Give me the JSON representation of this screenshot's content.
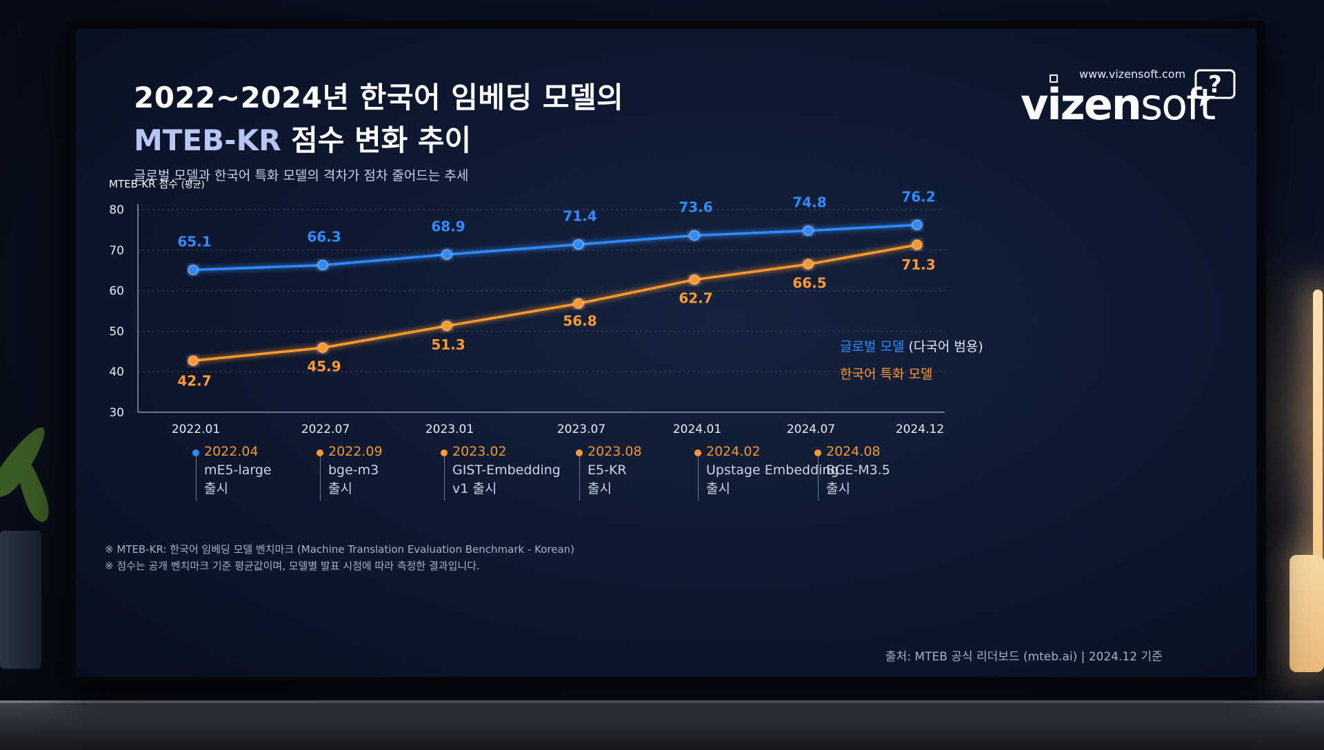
{
  "title_line1": "2022~2024년 한국어 임베딩 모델의",
  "title_line2_accent": "MTEB-KR",
  "title_line2_rest": " 점수 변화 추이",
  "subtitle": "글로벌 모델과 한국어 특화 모델의 격차가 점차 줄어드는 추세",
  "logo": {
    "url": "www.vizensoft.com",
    "word_bold": "vizen",
    "word_light": "soft",
    "icon": "question-bubble-icon"
  },
  "colors": {
    "global": "#2f8cff",
    "korean": "#ff9a2e",
    "axis": "#8a96ad",
    "tick": "#e9eef8"
  },
  "chart_data": {
    "type": "line",
    "ylabel": "MTEB-KR 점수",
    "ylabel_suffix": "(평균)",
    "ylim": [
      30,
      80
    ],
    "yticks": [
      80,
      70,
      60,
      50,
      40,
      30
    ],
    "categories": [
      "2022.01",
      "2022.07",
      "2023.01",
      "2023.07",
      "2024.01",
      "2024.07",
      "2024.12"
    ],
    "grid": true,
    "legend_position": "right",
    "series": [
      {
        "name": "글로벌 모델",
        "name_suffix": "(다국어 범용)",
        "values": [
          65.1,
          66.3,
          68.9,
          71.4,
          73.6,
          74.8,
          76.2
        ]
      },
      {
        "name": "한국어 특화 모델",
        "name_suffix": "",
        "values": [
          42.7,
          45.9,
          51.3,
          56.8,
          62.7,
          66.5,
          71.3
        ]
      }
    ]
  },
  "annotations": [
    {
      "date": "2022.04",
      "line1": "mE5-large",
      "line2": "출시",
      "dot": "blue"
    },
    {
      "date": "2022.09",
      "line1": "bge-m3",
      "line2": "출시",
      "dot": "orange"
    },
    {
      "date": "2023.02",
      "line1": "GIST-Embedding",
      "line2": "v1 출시",
      "dot": "orange"
    },
    {
      "date": "2023.08",
      "line1": "E5-KR",
      "line2": "출시",
      "dot": "orange"
    },
    {
      "date": "2024.02",
      "line1": "Upstage Embedding",
      "line2": "출시",
      "dot": "orange"
    },
    {
      "date": "2024.08",
      "line1": "BGE-M3.5",
      "line2": "출시",
      "dot": "orange"
    }
  ],
  "notes": [
    "※ MTEB-KR: 한국어 임베딩 모델 벤치마크 (Machine Translation Evaluation Benchmark - Korean)",
    "※ 점수는 공개 벤치마크 기준 평균값이며, 모델별 발표 시점에 따라 측정한 결과입니다."
  ],
  "source": "출처: MTEB 공식 리더보드 (mteb.ai)  |  2024.12 기준"
}
